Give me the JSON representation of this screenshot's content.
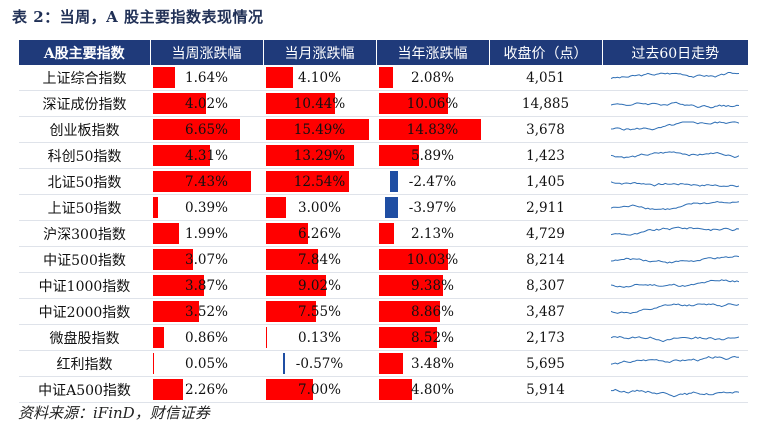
{
  "title": "表 2：当周，A 股主要指数表现情况",
  "source": "资料来源：iFinD，财信证券",
  "headers": [
    "A股主要指数",
    "当周涨跌幅",
    "当月涨跌幅",
    "当年涨跌幅",
    "收盘价（点）",
    "过去60日走势"
  ],
  "colors": {
    "header_bg": "#1f3a7a",
    "bar_positive": "#ff0000",
    "bar_negative": "#1f4ea3",
    "spark": "#2f6fb5"
  },
  "rows": [
    {
      "name": "上证综合指数",
      "week": "1.64%",
      "month": "4.10%",
      "year": "2.08%",
      "close": "4,051"
    },
    {
      "name": "深证成份指数",
      "week": "4.02%",
      "month": "10.44%",
      "year": "10.06%",
      "close": "14,885"
    },
    {
      "name": "创业板指数",
      "week": "6.65%",
      "month": "15.49%",
      "year": "14.83%",
      "close": "3,678"
    },
    {
      "name": "科创50指数",
      "week": "4.31%",
      "month": "13.29%",
      "year": "5.89%",
      "close": "1,423"
    },
    {
      "name": "北证50指数",
      "week": "7.43%",
      "month": "12.54%",
      "year": "-2.47%",
      "close": "1,405"
    },
    {
      "name": "上证50指数",
      "week": "0.39%",
      "month": "3.00%",
      "year": "-3.97%",
      "close": "2,911"
    },
    {
      "name": "沪深300指数",
      "week": "1.99%",
      "month": "6.26%",
      "year": "2.13%",
      "close": "4,729"
    },
    {
      "name": "中证500指数",
      "week": "3.07%",
      "month": "7.84%",
      "year": "10.03%",
      "close": "8,214"
    },
    {
      "name": "中证1000指数",
      "week": "3.87%",
      "month": "9.02%",
      "year": "9.38%",
      "close": "8,307"
    },
    {
      "name": "中证2000指数",
      "week": "3.52%",
      "month": "7.55%",
      "year": "8.86%",
      "close": "3,487"
    },
    {
      "name": "微盘股指数",
      "week": "0.86%",
      "month": "0.13%",
      "year": "8.52%",
      "close": "2,173"
    },
    {
      "name": "红利指数",
      "week": "0.05%",
      "month": "-0.57%",
      "year": "3.48%",
      "close": "5,695"
    },
    {
      "name": "中证A500指数",
      "week": "2.26%",
      "month": "7.00%",
      "year": "4.80%",
      "close": "5,914"
    }
  ]
}
